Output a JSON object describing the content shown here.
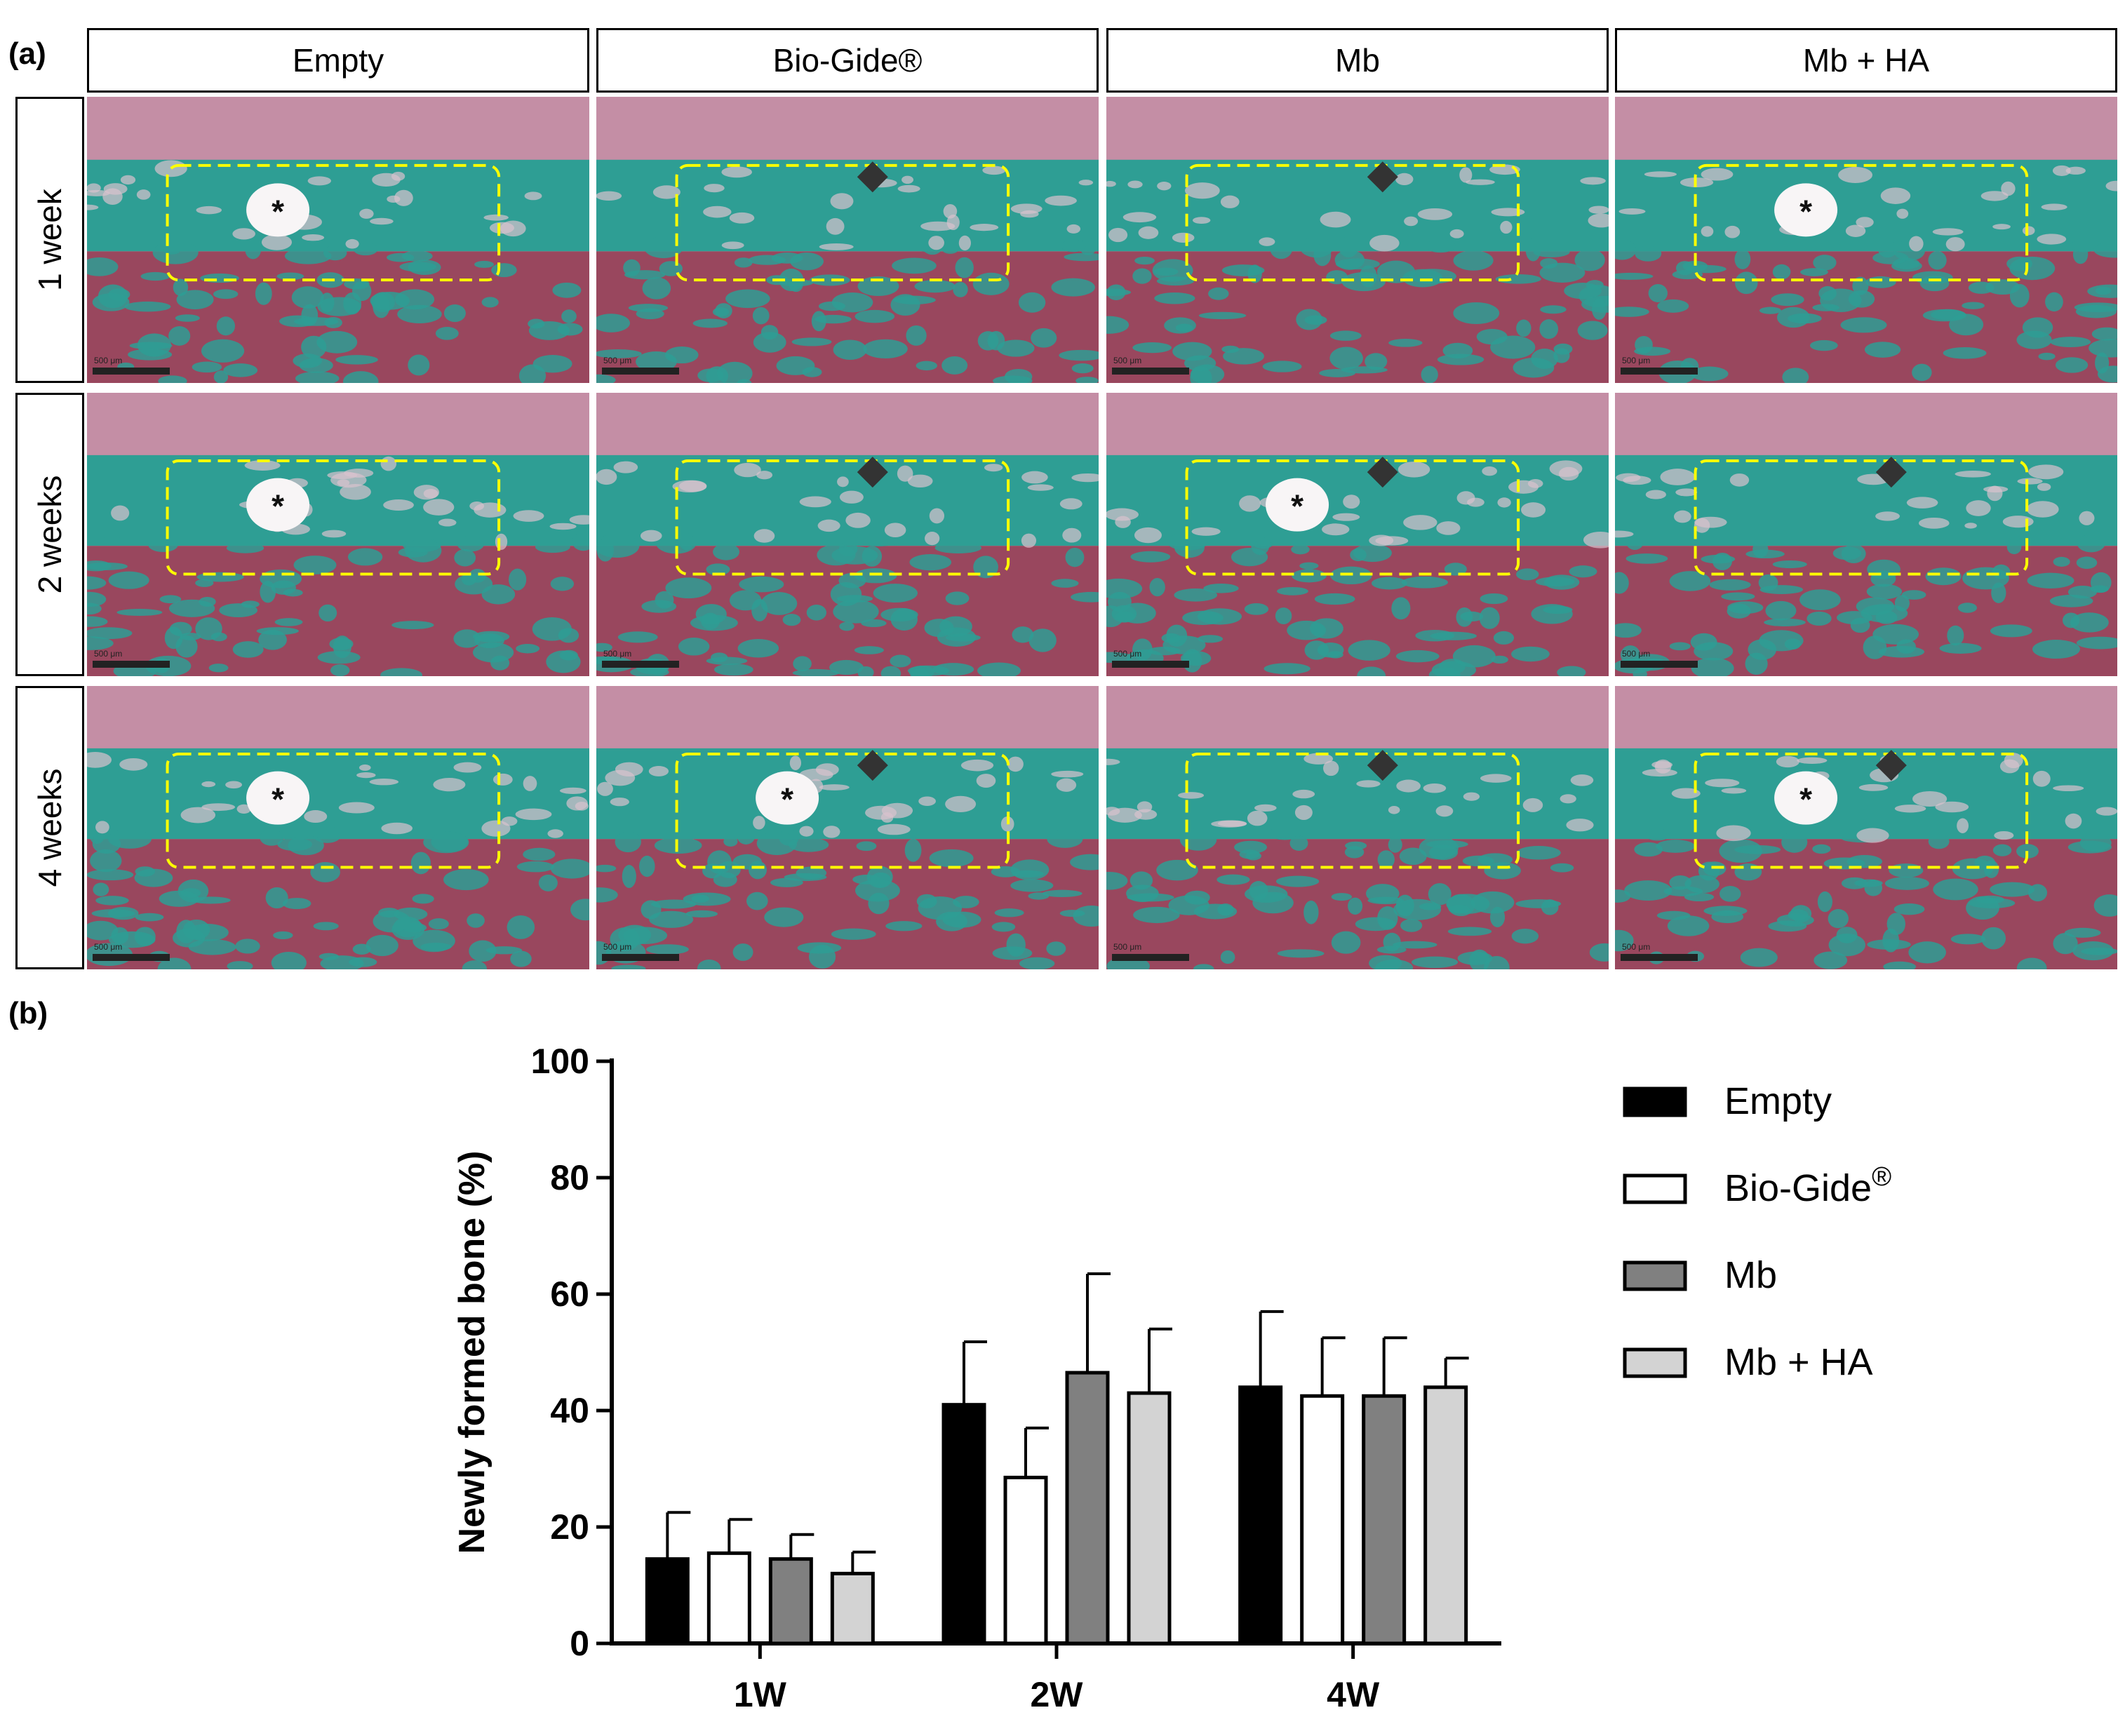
{
  "figure": {
    "panel_a_label": "(a)",
    "panel_b_label": "(b)",
    "columns": [
      "Empty",
      "Bio-Gide®",
      "Mb",
      "Mb + HA"
    ],
    "rows": [
      "1 week",
      "2 weeks",
      "4 weeks"
    ],
    "scale_bar_text": "500 μm",
    "markers": {
      "asterisk": "*",
      "tiles": [
        [
          "asterisk",
          "diamond",
          "diamond",
          "asterisk"
        ],
        [
          "asterisk",
          "diamond",
          "both",
          "diamond"
        ],
        [
          "asterisk",
          "both",
          "diamond",
          "both"
        ]
      ]
    },
    "colors": {
      "bone_stain": "#2e9e94",
      "marrow_stain": "#8a2a45",
      "tissue_stain": "#a0456b",
      "roi_outline": "#ffff00",
      "marker": "#333333"
    }
  },
  "chart_data": {
    "type": "bar",
    "ylabel": "Newly formed bone (%)",
    "ylim": [
      0,
      100
    ],
    "yticks": [
      "0",
      "20",
      "40",
      "60",
      "80",
      "100"
    ],
    "categories": [
      "1W",
      "2W",
      "4W"
    ],
    "series": [
      {
        "name": "Empty",
        "color": "#000000",
        "values": [
          14.5,
          41,
          44
        ],
        "errors": [
          8,
          10.8,
          13
        ]
      },
      {
        "name": "Bio-Gide",
        "legend_sup": "®",
        "color": "#ffffff",
        "values": [
          15.5,
          28.5,
          42.5
        ],
        "errors": [
          5.8,
          8.5,
          10
        ]
      },
      {
        "name": "Mb",
        "color": "#808080",
        "values": [
          14.5,
          46.5,
          42.5
        ],
        "errors": [
          4.2,
          17,
          10
        ]
      },
      {
        "name": "Mb + HA",
        "color": "#d3d3d3",
        "values": [
          12,
          43,
          44
        ],
        "errors": [
          3.7,
          11,
          5
        ]
      }
    ]
  }
}
